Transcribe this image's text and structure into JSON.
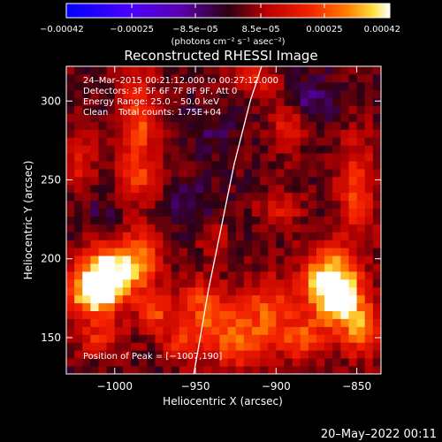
{
  "chart_data": {
    "type": "heatmap",
    "title": "Reconstructed RHESSI Image",
    "xlabel": "Heliocentric X (arcsec)",
    "ylabel": "Heliocentric Y (arcsec)",
    "xlim": [
      -1030,
      -835
    ],
    "ylim": [
      127,
      322
    ],
    "x_ticks": [
      -1000,
      -950,
      -900,
      -850
    ],
    "y_ticks": [
      150,
      200,
      250,
      300
    ],
    "x_tick_labels": [
      "−1000",
      "−950",
      "−900",
      "−850"
    ],
    "y_tick_labels": [
      "150",
      "200",
      "250",
      "300"
    ],
    "colorbar": {
      "min": -0.00042,
      "max": 0.00042,
      "tick_values": [
        -0.00042,
        -0.00025,
        -8.5e-05,
        8.5e-05,
        0.00025,
        0.00042
      ],
      "tick_labels": [
        "−0.00042",
        "−0.00025",
        "−8.5e−05",
        "8.5e−05",
        "0.00025",
        "0.00042"
      ],
      "units_label": "(photons cm⁻² s⁻¹ asec⁻²)",
      "colormap": [
        "#0000ff",
        "#4b00ff",
        "#5a00b0",
        "#2b0012",
        "#ba0000",
        "#f42000",
        "#ff8000",
        "#ffe040",
        "#ffffff"
      ]
    },
    "annotations": {
      "time_range": "24–Mar–2015 00:21:12.000 to 00:27:12.000",
      "detectors": "Detectors: 3F 5F 6F 7F 8F 9F, Att 0",
      "energy_range": "Energy Range: 25.0 – 50.0 keV",
      "method": "Clean",
      "total_counts": "Total counts: 1.75E+04",
      "peak_position": "Position of Peak = [−1007,190]"
    },
    "peak": {
      "x": -1007,
      "y": 190
    },
    "limb": [
      [
        -951,
        127
      ],
      [
        -947,
        150
      ],
      [
        -942,
        180
      ],
      [
        -934,
        220
      ],
      [
        -926,
        260
      ],
      [
        -916,
        300
      ],
      [
        -909,
        322
      ]
    ],
    "blobs": [
      {
        "x": -1005,
        "y": 190,
        "sx": 12,
        "sy": 14,
        "v": 0.0004
      },
      {
        "x": -1015,
        "y": 178,
        "sx": 10,
        "sy": 10,
        "v": 0.0003
      },
      {
        "x": -985,
        "y": 200,
        "sx": 10,
        "sy": 14,
        "v": 0.00022
      },
      {
        "x": -975,
        "y": 165,
        "sx": 8,
        "sy": 10,
        "v": 0.00018
      },
      {
        "x": -945,
        "y": 170,
        "sx": 12,
        "sy": 12,
        "v": 0.00022
      },
      {
        "x": -958,
        "y": 145,
        "sx": 8,
        "sy": 8,
        "v": 0.00016
      },
      {
        "x": -925,
        "y": 148,
        "sx": 14,
        "sy": 12,
        "v": 0.00025
      },
      {
        "x": -905,
        "y": 170,
        "sx": 10,
        "sy": 14,
        "v": 0.0002
      },
      {
        "x": -870,
        "y": 185,
        "sx": 10,
        "sy": 14,
        "v": 0.00035
      },
      {
        "x": -858,
        "y": 175,
        "sx": 10,
        "sy": 18,
        "v": 0.0003
      },
      {
        "x": -885,
        "y": 150,
        "sx": 10,
        "sy": 10,
        "v": 0.00022
      },
      {
        "x": -845,
        "y": 155,
        "sx": 8,
        "sy": 12,
        "v": 0.00022
      },
      {
        "x": -850,
        "y": 245,
        "sx": 8,
        "sy": 22,
        "v": 0.0002
      },
      {
        "x": -892,
        "y": 285,
        "sx": 8,
        "sy": 12,
        "v": 0.00016
      },
      {
        "x": -915,
        "y": 315,
        "sx": 12,
        "sy": 8,
        "v": 0.00015
      },
      {
        "x": -985,
        "y": 290,
        "sx": 8,
        "sy": 22,
        "v": 0.00022
      },
      {
        "x": -985,
        "y": 250,
        "sx": 10,
        "sy": 12,
        "v": 0.00014
      },
      {
        "x": -1020,
        "y": 260,
        "sx": 6,
        "sy": 16,
        "v": 0.00014
      },
      {
        "x": -1010,
        "y": 150,
        "sx": 10,
        "sy": 8,
        "v": 0.00016
      },
      {
        "x": -938,
        "y": 215,
        "sx": 6,
        "sy": 8,
        "v": 0.0001
      },
      {
        "x": -898,
        "y": 232,
        "sx": 10,
        "sy": 8,
        "v": 0.00012
      },
      {
        "x": -955,
        "y": 235,
        "sx": 12,
        "sy": 10,
        "v": -8e-05
      },
      {
        "x": -880,
        "y": 300,
        "sx": 10,
        "sy": 12,
        "v": -0.00012
      },
      {
        "x": -940,
        "y": 280,
        "sx": 12,
        "sy": 12,
        "v": -6e-05
      },
      {
        "x": -1010,
        "y": 230,
        "sx": 12,
        "sy": 12,
        "v": -6e-05
      }
    ]
  },
  "footer": {
    "date": "20–May–2022 00:11"
  }
}
